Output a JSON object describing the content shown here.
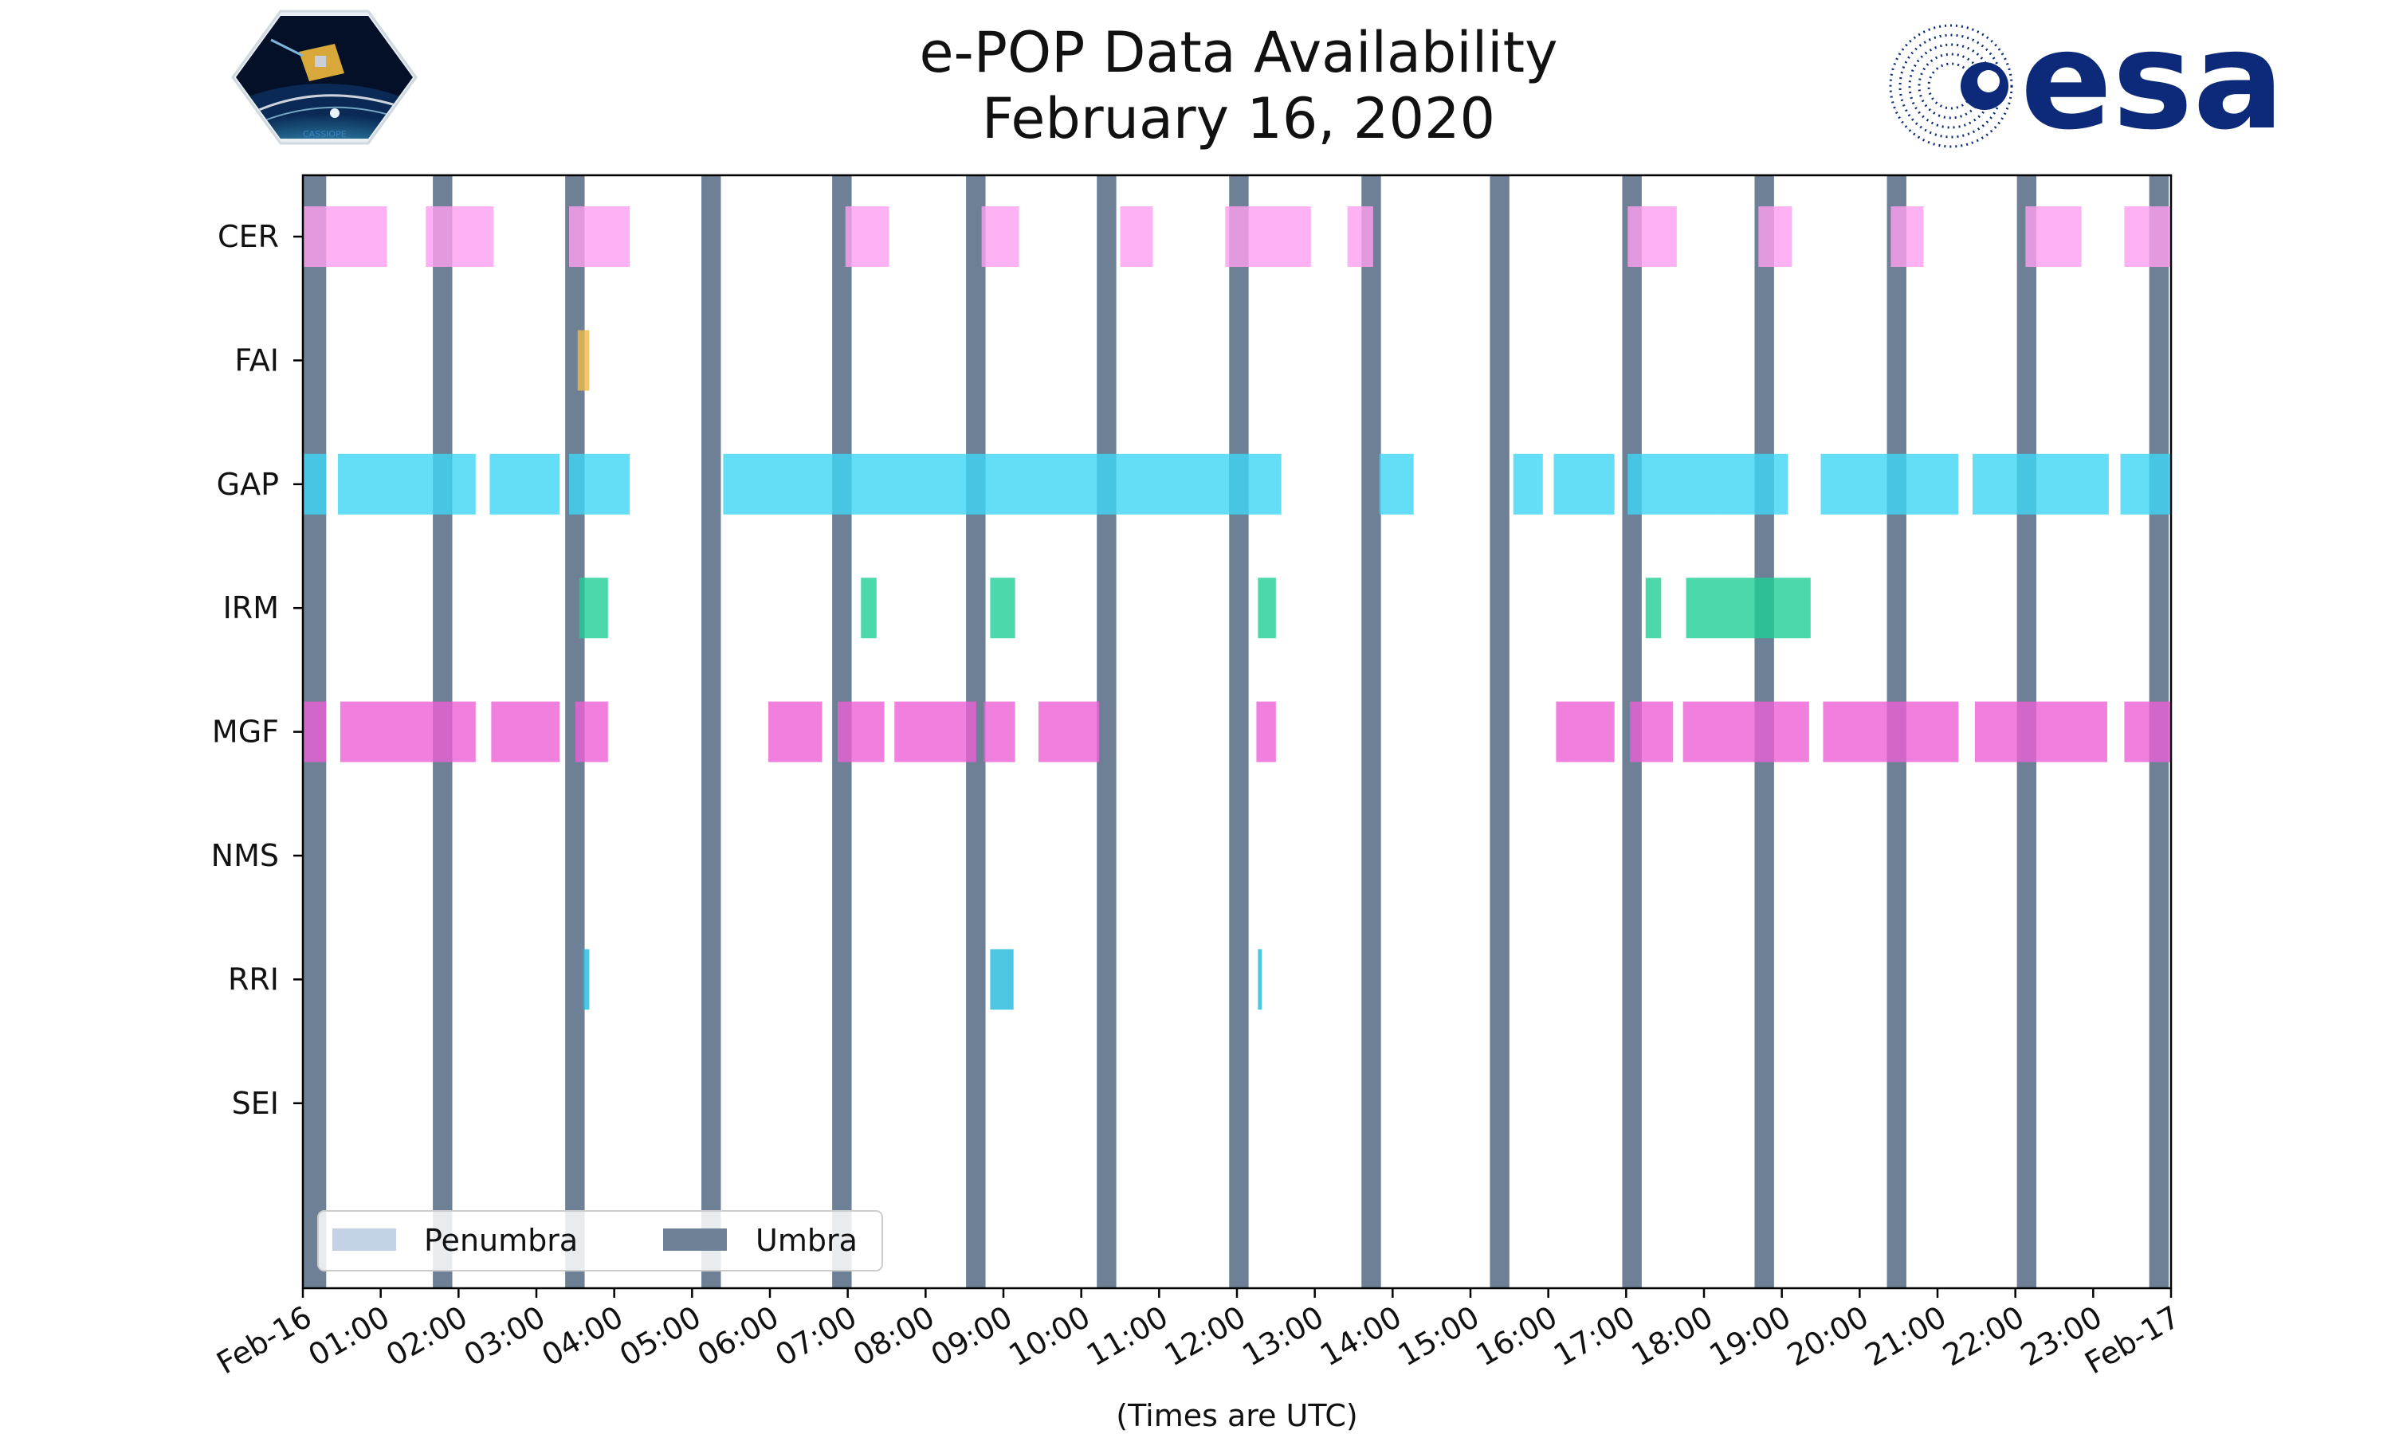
{
  "chart_data": {
    "type": "timeline",
    "title": [
      "e-POP Data Availability",
      "February 16, 2020"
    ],
    "xlabel": "(Times are UTC)",
    "x_range_hours": [
      0,
      24
    ],
    "x_tick_labels": [
      "Feb-16",
      "01:00",
      "02:00",
      "03:00",
      "04:00",
      "05:00",
      "06:00",
      "07:00",
      "08:00",
      "09:00",
      "10:00",
      "11:00",
      "12:00",
      "13:00",
      "14:00",
      "15:00",
      "16:00",
      "17:00",
      "18:00",
      "19:00",
      "20:00",
      "21:00",
      "22:00",
      "23:00",
      "Feb-17"
    ],
    "instruments": [
      "CER",
      "FAI",
      "GAP",
      "IRM",
      "MGF",
      "NMS",
      "RRI",
      "SEI"
    ],
    "colors": {
      "CER": "#ff9ff0",
      "FAI": "#f0b84a",
      "GAP": "#3dd6f5",
      "IRM": "#1fce96",
      "MGF": "#ec5fd6",
      "RRI": "#1fb8dc",
      "umbra": "#6e8096",
      "penumbra": "#c3d2e4"
    },
    "series": [
      {
        "name": "CER",
        "intervals": [
          [
            0.0,
            1.08
          ],
          [
            1.58,
            2.45
          ],
          [
            3.42,
            4.2
          ],
          [
            6.97,
            7.53
          ],
          [
            8.72,
            9.2
          ],
          [
            10.5,
            10.92
          ],
          [
            11.85,
            12.95
          ],
          [
            13.42,
            13.75
          ],
          [
            17.02,
            17.65
          ],
          [
            18.7,
            19.13
          ],
          [
            20.4,
            20.82
          ],
          [
            22.13,
            22.85
          ],
          [
            23.4,
            24.0
          ]
        ]
      },
      {
        "name": "FAI",
        "intervals": [
          [
            3.53,
            3.68
          ]
        ]
      },
      {
        "name": "GAP",
        "intervals": [
          [
            0.0,
            0.3
          ],
          [
            0.45,
            2.22
          ],
          [
            2.4,
            3.3
          ],
          [
            3.42,
            4.2
          ],
          [
            5.4,
            12.57
          ],
          [
            13.83,
            14.27
          ],
          [
            15.55,
            15.93
          ],
          [
            16.07,
            16.85
          ],
          [
            17.02,
            18.2
          ],
          [
            18.2,
            19.08
          ],
          [
            19.5,
            21.27
          ],
          [
            21.45,
            23.2
          ],
          [
            23.35,
            24.0
          ]
        ]
      },
      {
        "name": "IRM",
        "intervals": [
          [
            3.55,
            3.92
          ],
          [
            7.17,
            7.37
          ],
          [
            8.83,
            9.15
          ],
          [
            12.27,
            12.5
          ],
          [
            17.25,
            17.45
          ],
          [
            17.77,
            19.37
          ]
        ]
      },
      {
        "name": "MGF",
        "intervals": [
          [
            0.0,
            0.3
          ],
          [
            0.48,
            2.22
          ],
          [
            2.42,
            3.3
          ],
          [
            3.5,
            3.92
          ],
          [
            5.98,
            6.67
          ],
          [
            6.87,
            7.47
          ],
          [
            7.6,
            8.65
          ],
          [
            8.75,
            9.15
          ],
          [
            9.45,
            10.23
          ],
          [
            12.25,
            12.5
          ],
          [
            16.1,
            16.85
          ],
          [
            17.05,
            17.6
          ],
          [
            17.73,
            19.35
          ],
          [
            19.53,
            21.27
          ],
          [
            21.48,
            23.18
          ],
          [
            23.4,
            24.0
          ]
        ]
      },
      {
        "name": "NMS",
        "intervals": []
      },
      {
        "name": "RRI",
        "intervals": [
          [
            3.6,
            3.68
          ],
          [
            8.83,
            9.13
          ],
          [
            12.27,
            12.32
          ]
        ]
      },
      {
        "name": "SEI",
        "intervals": []
      }
    ],
    "umbra_intervals": [
      [
        0.0,
        0.3
      ],
      [
        1.67,
        1.92
      ],
      [
        3.37,
        3.62
      ],
      [
        5.12,
        5.37
      ],
      [
        6.8,
        7.05
      ],
      [
        8.52,
        8.77
      ],
      [
        10.2,
        10.45
      ],
      [
        11.9,
        12.15
      ],
      [
        13.6,
        13.85
      ],
      [
        15.25,
        15.5
      ],
      [
        16.95,
        17.2
      ],
      [
        18.65,
        18.9
      ],
      [
        20.35,
        20.6
      ],
      [
        22.02,
        22.27
      ],
      [
        23.72,
        23.97
      ]
    ],
    "penumbra_intervals": [],
    "legend": {
      "position": "lower-left",
      "entries": [
        "Penumbra",
        "Umbra"
      ]
    }
  },
  "logos": {
    "left_caption": "CASSIOPE",
    "right_text": "esa"
  }
}
